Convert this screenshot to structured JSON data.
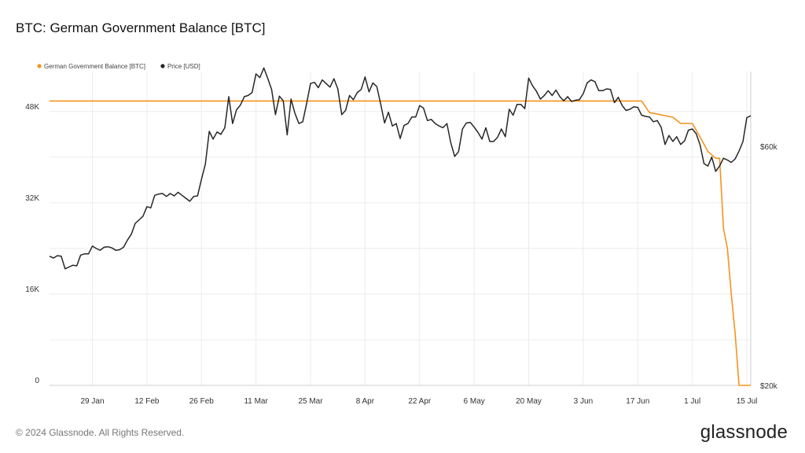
{
  "page": {
    "title": "BTC: German Government Balance [BTC]",
    "copyright": "© 2024 Glassnode. All Rights Reserved.",
    "brand": "glassnode"
  },
  "colors": {
    "balance": "#f7931a",
    "price": "#262626",
    "grid": "#ececec",
    "axis": "#cfcfcf"
  },
  "chart_data": {
    "type": "line",
    "title": "BTC: German Government Balance [BTC]",
    "x_ticks": [
      "29 Jan",
      "12 Feb",
      "26 Feb",
      "11 Mar",
      "25 Mar",
      "8 Apr",
      "22 Apr",
      "6 May",
      "20 May",
      "3 Jun",
      "17 Jun",
      "1 Jul",
      "15 Jul"
    ],
    "x_range": [
      "2024-01-18",
      "2024-07-16"
    ],
    "y_left": {
      "ticks": [
        "0",
        "16K",
        "32K",
        "48K"
      ],
      "tick_values": [
        0,
        16000,
        32000,
        48000
      ],
      "range": [
        0,
        55000
      ]
    },
    "y_right": {
      "ticks": [
        "$20k",
        "$60k"
      ],
      "tick_values": [
        20000,
        60000
      ],
      "range": [
        20000,
        72500
      ]
    },
    "legend_position": "top-left",
    "series": [
      {
        "name": "German Government Balance [BTC]",
        "axis": "left",
        "points": [
          [
            "2024-01-18",
            49850
          ],
          [
            "2024-06-18",
            49850
          ],
          [
            "2024-06-20",
            47800
          ],
          [
            "2024-06-26",
            47000
          ],
          [
            "2024-06-28",
            45900
          ],
          [
            "2024-07-01",
            45900
          ],
          [
            "2024-07-03",
            43500
          ],
          [
            "2024-07-05",
            41000
          ],
          [
            "2024-07-07",
            39800
          ],
          [
            "2024-07-08",
            39800
          ],
          [
            "2024-07-09",
            27500
          ],
          [
            "2024-07-10",
            24000
          ],
          [
            "2024-07-11",
            16000
          ],
          [
            "2024-07-12",
            9000
          ],
          [
            "2024-07-13",
            0
          ],
          [
            "2024-07-16",
            0
          ]
        ]
      },
      {
        "name": "Price [USD]",
        "axis": "right",
        "points": [
          [
            "2024-01-18",
            41600
          ],
          [
            "2024-01-19",
            41300
          ],
          [
            "2024-01-20",
            41700
          ],
          [
            "2024-01-21",
            41600
          ],
          [
            "2024-01-22",
            39500
          ],
          [
            "2024-01-23",
            39800
          ],
          [
            "2024-01-24",
            40100
          ],
          [
            "2024-01-25",
            40000
          ],
          [
            "2024-01-26",
            41800
          ],
          [
            "2024-01-27",
            42000
          ],
          [
            "2024-01-28",
            42000
          ],
          [
            "2024-01-29",
            43300
          ],
          [
            "2024-01-30",
            42900
          ],
          [
            "2024-01-31",
            42600
          ],
          [
            "2024-02-01",
            43100
          ],
          [
            "2024-02-02",
            43200
          ],
          [
            "2024-02-03",
            43000
          ],
          [
            "2024-02-04",
            42600
          ],
          [
            "2024-02-05",
            42700
          ],
          [
            "2024-02-06",
            43100
          ],
          [
            "2024-02-07",
            44300
          ],
          [
            "2024-02-08",
            45300
          ],
          [
            "2024-02-09",
            47100
          ],
          [
            "2024-02-10",
            47700
          ],
          [
            "2024-02-11",
            48300
          ],
          [
            "2024-02-12",
            49900
          ],
          [
            "2024-02-13",
            49700
          ],
          [
            "2024-02-14",
            51800
          ],
          [
            "2024-02-15",
            52000
          ],
          [
            "2024-02-16",
            52100
          ],
          [
            "2024-02-17",
            51600
          ],
          [
            "2024-02-18",
            52100
          ],
          [
            "2024-02-19",
            51700
          ],
          [
            "2024-02-20",
            52300
          ],
          [
            "2024-02-21",
            51800
          ],
          [
            "2024-02-22",
            51300
          ],
          [
            "2024-02-23",
            50800
          ],
          [
            "2024-02-24",
            51600
          ],
          [
            "2024-02-25",
            51700
          ],
          [
            "2024-02-26",
            54500
          ],
          [
            "2024-02-27",
            57000
          ],
          [
            "2024-02-28",
            62500
          ],
          [
            "2024-02-29",
            61200
          ],
          [
            "2024-03-01",
            62400
          ],
          [
            "2024-03-02",
            62000
          ],
          [
            "2024-03-03",
            63100
          ],
          [
            "2024-03-04",
            68300
          ],
          [
            "2024-03-05",
            63800
          ],
          [
            "2024-03-06",
            66100
          ],
          [
            "2024-03-07",
            66900
          ],
          [
            "2024-03-08",
            68300
          ],
          [
            "2024-03-09",
            68500
          ],
          [
            "2024-03-10",
            69000
          ],
          [
            "2024-03-11",
            72100
          ],
          [
            "2024-03-12",
            71500
          ],
          [
            "2024-03-13",
            73100
          ],
          [
            "2024-03-14",
            71400
          ],
          [
            "2024-03-15",
            69500
          ],
          [
            "2024-03-16",
            65300
          ],
          [
            "2024-03-17",
            68400
          ],
          [
            "2024-03-18",
            67600
          ],
          [
            "2024-03-19",
            61900
          ],
          [
            "2024-03-20",
            67900
          ],
          [
            "2024-03-21",
            65500
          ],
          [
            "2024-03-22",
            63800
          ],
          [
            "2024-03-23",
            64100
          ],
          [
            "2024-03-24",
            67200
          ],
          [
            "2024-03-25",
            70500
          ],
          [
            "2024-03-26",
            70700
          ],
          [
            "2024-03-27",
            69800
          ],
          [
            "2024-03-28",
            71100
          ],
          [
            "2024-03-29",
            70500
          ],
          [
            "2024-03-30",
            69900
          ],
          [
            "2024-03-31",
            71300
          ],
          [
            "2024-04-01",
            69600
          ],
          [
            "2024-04-02",
            65300
          ],
          [
            "2024-04-03",
            66000
          ],
          [
            "2024-04-04",
            68500
          ],
          [
            "2024-04-05",
            67800
          ],
          [
            "2024-04-06",
            69000
          ],
          [
            "2024-04-07",
            69500
          ],
          [
            "2024-04-08",
            71600
          ],
          [
            "2024-04-09",
            69100
          ],
          [
            "2024-04-10",
            70600
          ],
          [
            "2024-04-11",
            70000
          ],
          [
            "2024-04-12",
            67100
          ],
          [
            "2024-04-13",
            63900
          ],
          [
            "2024-04-14",
            65700
          ],
          [
            "2024-04-15",
            63400
          ],
          [
            "2024-04-16",
            63800
          ],
          [
            "2024-04-17",
            61300
          ],
          [
            "2024-04-18",
            63500
          ],
          [
            "2024-04-19",
            63800
          ],
          [
            "2024-04-20",
            64900
          ],
          [
            "2024-04-21",
            64900
          ],
          [
            "2024-04-22",
            66800
          ],
          [
            "2024-04-23",
            66400
          ],
          [
            "2024-04-24",
            64300
          ],
          [
            "2024-04-25",
            64500
          ],
          [
            "2024-04-26",
            63800
          ],
          [
            "2024-04-27",
            63400
          ],
          [
            "2024-04-28",
            63100
          ],
          [
            "2024-04-29",
            63800
          ],
          [
            "2024-04-30",
            60600
          ],
          [
            "2024-05-01",
            58300
          ],
          [
            "2024-05-02",
            59100
          ],
          [
            "2024-05-03",
            62900
          ],
          [
            "2024-05-04",
            63900
          ],
          [
            "2024-05-05",
            64000
          ],
          [
            "2024-05-06",
            63200
          ],
          [
            "2024-05-07",
            62300
          ],
          [
            "2024-05-08",
            61200
          ],
          [
            "2024-05-09",
            63100
          ],
          [
            "2024-05-10",
            60800
          ],
          [
            "2024-05-11",
            60800
          ],
          [
            "2024-05-12",
            61500
          ],
          [
            "2024-05-13",
            62900
          ],
          [
            "2024-05-14",
            61600
          ],
          [
            "2024-05-15",
            66200
          ],
          [
            "2024-05-16",
            65200
          ],
          [
            "2024-05-17",
            67000
          ],
          [
            "2024-05-18",
            67000
          ],
          [
            "2024-05-19",
            66300
          ],
          [
            "2024-05-20",
            71400
          ],
          [
            "2024-05-21",
            70100
          ],
          [
            "2024-05-22",
            69200
          ],
          [
            "2024-05-23",
            67900
          ],
          [
            "2024-05-24",
            68500
          ],
          [
            "2024-05-25",
            69300
          ],
          [
            "2024-05-26",
            68500
          ],
          [
            "2024-05-27",
            69400
          ],
          [
            "2024-05-28",
            68300
          ],
          [
            "2024-05-29",
            67600
          ],
          [
            "2024-05-30",
            68300
          ],
          [
            "2024-05-31",
            67500
          ],
          [
            "2024-06-01",
            67700
          ],
          [
            "2024-06-02",
            67800
          ],
          [
            "2024-06-03",
            68800
          ],
          [
            "2024-06-04",
            70600
          ],
          [
            "2024-06-05",
            71100
          ],
          [
            "2024-06-06",
            70800
          ],
          [
            "2024-06-07",
            69300
          ],
          [
            "2024-06-08",
            69300
          ],
          [
            "2024-06-09",
            69600
          ],
          [
            "2024-06-10",
            69500
          ],
          [
            "2024-06-11",
            67300
          ],
          [
            "2024-06-12",
            68200
          ],
          [
            "2024-06-13",
            66800
          ],
          [
            "2024-06-14",
            66000
          ],
          [
            "2024-06-15",
            66200
          ],
          [
            "2024-06-16",
            66600
          ],
          [
            "2024-06-17",
            66500
          ],
          [
            "2024-06-18",
            65200
          ],
          [
            "2024-06-19",
            65000
          ],
          [
            "2024-06-20",
            64900
          ],
          [
            "2024-06-21",
            64100
          ],
          [
            "2024-06-22",
            64300
          ],
          [
            "2024-06-23",
            63200
          ],
          [
            "2024-06-24",
            60300
          ],
          [
            "2024-06-25",
            61800
          ],
          [
            "2024-06-26",
            60800
          ],
          [
            "2024-06-27",
            61600
          ],
          [
            "2024-06-28",
            60300
          ],
          [
            "2024-06-29",
            60900
          ],
          [
            "2024-06-30",
            62700
          ],
          [
            "2024-07-01",
            62900
          ],
          [
            "2024-07-02",
            62100
          ],
          [
            "2024-07-03",
            60200
          ],
          [
            "2024-07-04",
            57100
          ],
          [
            "2024-07-05",
            56700
          ],
          [
            "2024-07-06",
            58200
          ],
          [
            "2024-07-07",
            55800
          ],
          [
            "2024-07-08",
            56700
          ],
          [
            "2024-07-09",
            58000
          ],
          [
            "2024-07-10",
            57700
          ],
          [
            "2024-07-11",
            57300
          ],
          [
            "2024-07-12",
            57900
          ],
          [
            "2024-07-13",
            59200
          ],
          [
            "2024-07-14",
            60800
          ],
          [
            "2024-07-15",
            64800
          ],
          [
            "2024-07-16",
            65100
          ]
        ]
      }
    ]
  }
}
